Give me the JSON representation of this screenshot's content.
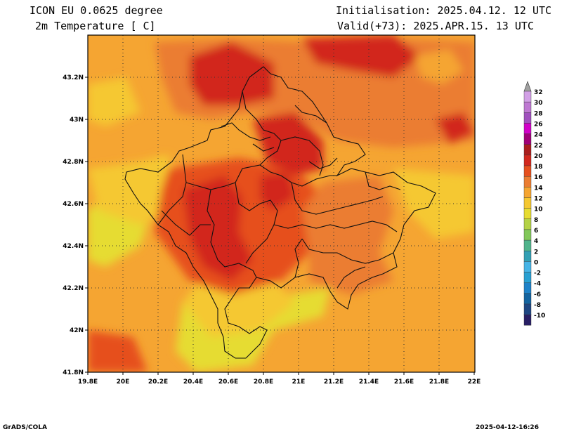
{
  "header": {
    "model": "ICON EU 0.0625 degree",
    "variable": "2m Temperature [ C]",
    "init": "Initialisation: 2025.04.12. 12 UTC",
    "valid": "Valid(+73): 2025.APR.15. 13 UTC"
  },
  "footer": {
    "credit": "GrADS/COLA",
    "timestamp": "2025-04-12-16:26"
  },
  "map": {
    "lon_range": [
      19.8,
      22.0
    ],
    "lat_range": [
      41.8,
      43.4
    ],
    "x_ticks": [
      "19.8E",
      "20E",
      "20.2E",
      "20.4E",
      "20.6E",
      "20.8E",
      "21E",
      "21.2E",
      "21.4E",
      "21.6E",
      "21.8E",
      "22E"
    ],
    "y_ticks": [
      "41.8N",
      "42N",
      "42.2N",
      "42.4N",
      "42.6N",
      "42.8N",
      "43N",
      "43.2N"
    ],
    "grid": "dotted"
  },
  "colorbar": {
    "labels": [
      "32",
      "30",
      "28",
      "26",
      "24",
      "22",
      "20",
      "18",
      "16",
      "14",
      "12",
      "10",
      "8",
      "6",
      "4",
      "2",
      "0",
      "-2",
      "-4",
      "-6",
      "-8",
      "-10"
    ],
    "colors": [
      "#d2a0e6",
      "#be78d2",
      "#a050be",
      "#d200c8",
      "#a00078",
      "#aa1e1e",
      "#d2281e",
      "#e6501e",
      "#eb7d32",
      "#f5a532",
      "#f5c832",
      "#e6dc32",
      "#b4d246",
      "#82c85a",
      "#50b48c",
      "#32a0b4",
      "#46b4e6",
      "#28a0d2",
      "#1e82c8",
      "#1464a0",
      "#1e4682",
      "#281e64"
    ]
  }
}
